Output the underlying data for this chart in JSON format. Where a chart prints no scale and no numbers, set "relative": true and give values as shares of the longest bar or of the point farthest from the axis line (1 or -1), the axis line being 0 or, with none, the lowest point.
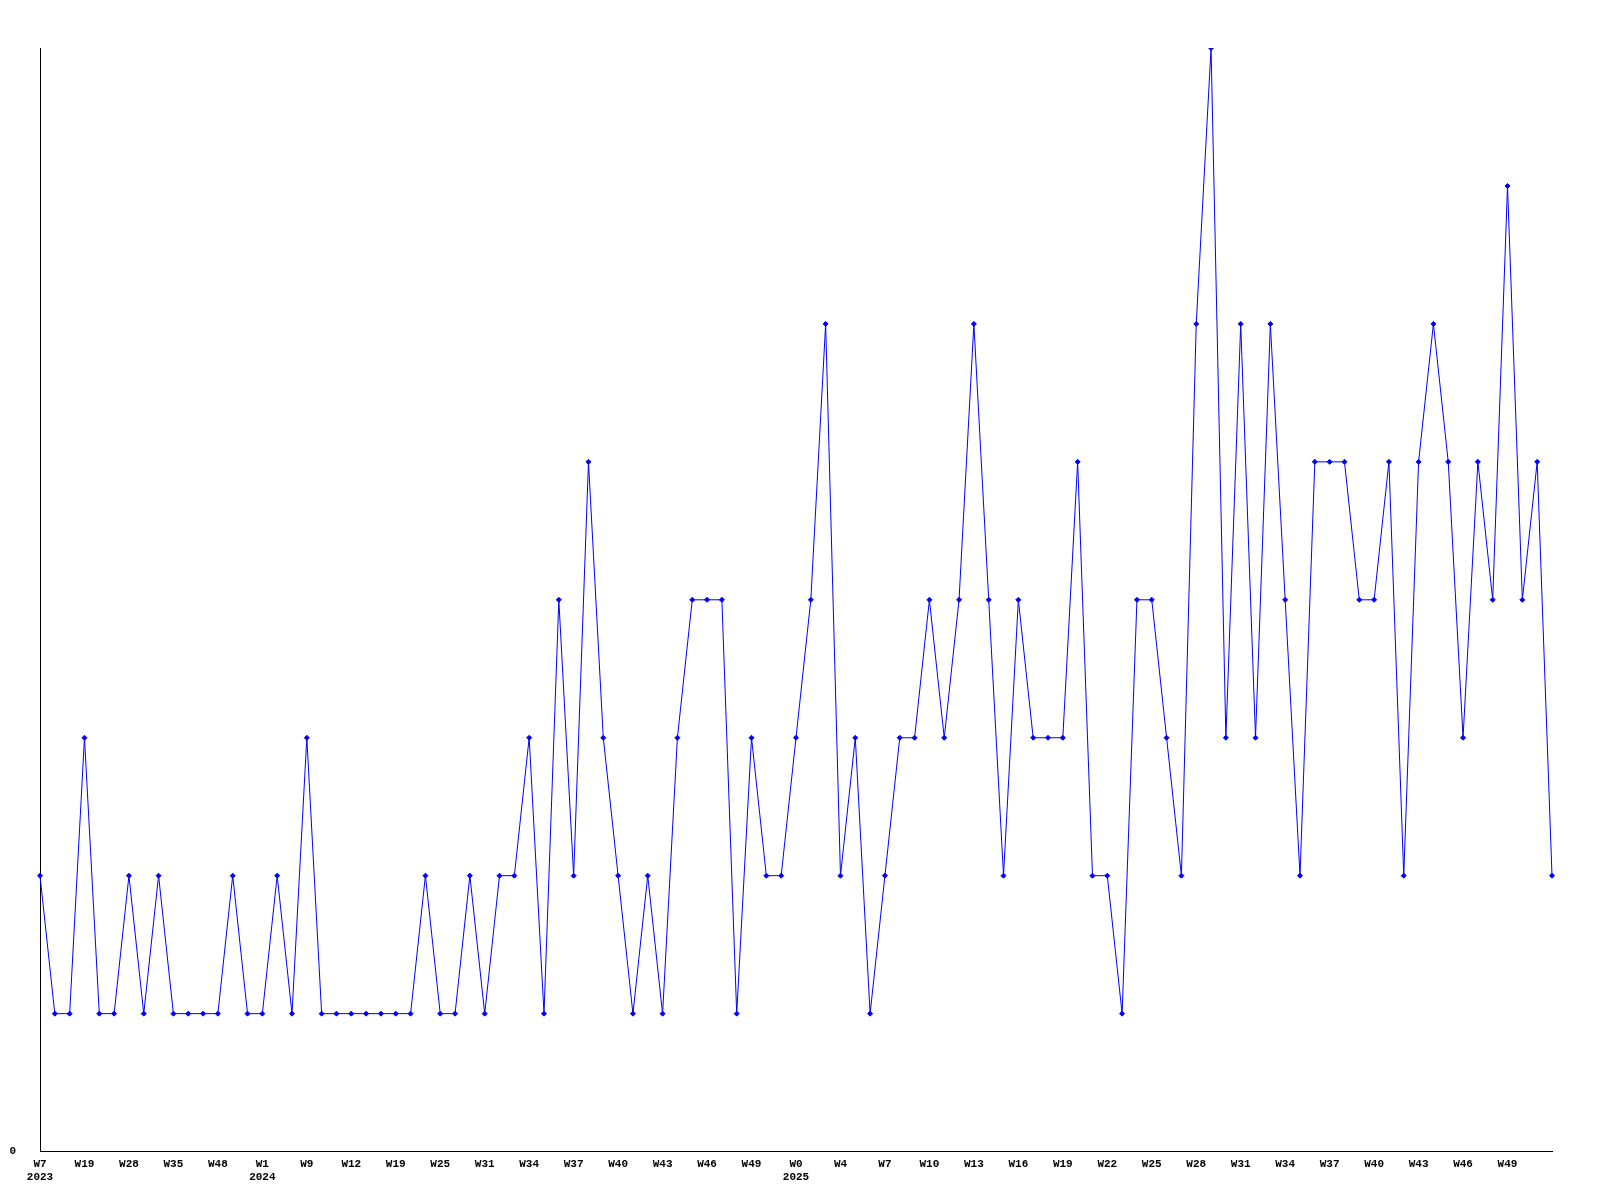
{
  "chart_data": {
    "type": "line",
    "relative": true,
    "grid": false,
    "legend": false,
    "marker": "diamond",
    "line_style": "solid",
    "annotations": [
      "0"
    ],
    "categories": [
      "W7\n2023",
      null,
      null,
      "W19",
      null,
      null,
      "W28",
      null,
      null,
      "W35",
      null,
      null,
      "W48",
      null,
      null,
      "W1\n2024",
      null,
      null,
      "W9",
      null,
      null,
      "W12",
      null,
      null,
      "W19",
      null,
      null,
      "W25",
      null,
      null,
      "W31",
      null,
      null,
      "W34",
      null,
      null,
      "W37",
      null,
      null,
      "W40",
      null,
      null,
      "W43",
      null,
      null,
      "W46",
      null,
      null,
      "W49",
      null,
      null,
      "W0\n2025",
      null,
      null,
      "W4",
      null,
      null,
      "W7",
      null,
      null,
      "W10",
      null,
      null,
      "W13",
      null,
      null,
      "W16",
      null,
      null,
      "W19",
      null,
      null,
      "W22",
      null,
      null,
      "W25",
      null,
      null,
      "W28",
      null,
      null,
      "W31",
      null,
      null,
      "W34",
      null,
      null,
      "W37",
      null,
      null,
      "W40",
      null,
      null,
      "W43",
      null,
      null,
      "W46",
      null,
      null,
      "W49",
      null,
      null,
      null
    ],
    "series": [
      {
        "color": "#0000ff",
        "values": [
          0.25,
          0.125,
          0.125,
          0.375,
          0.125,
          0.125,
          0.25,
          0.125,
          0.25,
          0.125,
          0.125,
          0.125,
          0.125,
          0.25,
          0.125,
          0.125,
          0.25,
          0.125,
          0.375,
          0.125,
          0.125,
          0.125,
          0.125,
          0.125,
          0.125,
          0.125,
          0.25,
          0.125,
          0.125,
          0.25,
          0.125,
          0.25,
          0.25,
          0.375,
          0.125,
          0.5,
          0.25,
          0.625,
          0.375,
          0.25,
          0.125,
          0.25,
          0.125,
          0.375,
          0.5,
          0.5,
          0.5,
          0.125,
          0.375,
          0.25,
          0.25,
          0.375,
          0.5,
          0.75,
          0.25,
          0.375,
          0.125,
          0.25,
          0.375,
          0.375,
          0.5,
          0.375,
          0.5,
          0.75,
          0.5,
          0.25,
          0.5,
          0.375,
          0.375,
          0.375,
          0.625,
          0.25,
          0.25,
          0.125,
          0.5,
          0.5,
          0.375,
          0.25,
          0.75,
          1,
          0.375,
          0.75,
          0.375,
          0.75,
          0.5,
          0.25,
          0.625,
          0.625,
          0.625,
          0.5,
          0.5,
          0.625,
          0.25,
          0.625,
          0.75,
          0.625,
          0.375,
          0.625,
          0.5,
          0.875,
          0.5,
          0.625,
          0.25
        ]
      }
    ]
  }
}
